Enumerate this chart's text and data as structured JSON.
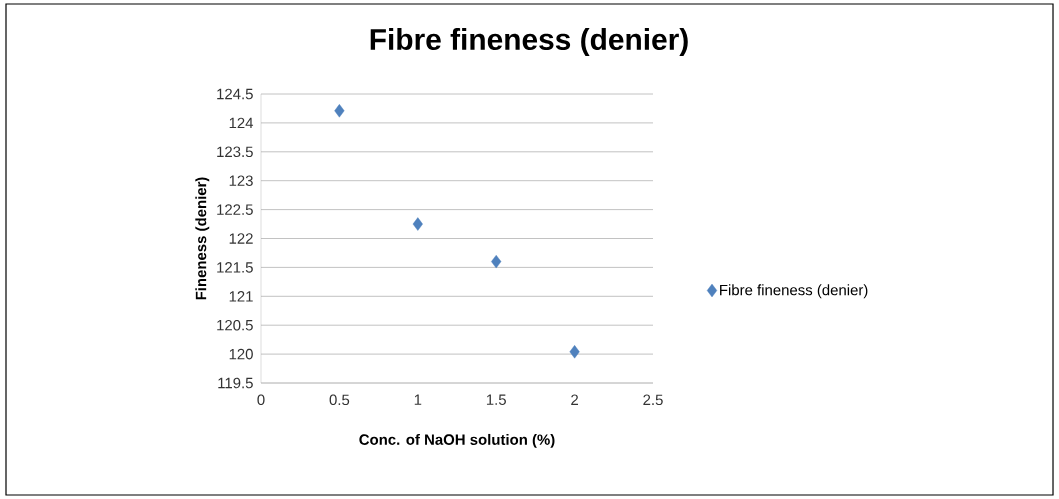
{
  "chart_data": {
    "type": "scatter",
    "title": "Fibre fineness (denier)",
    "xlabel": "Conc. of NaOH solution (%)",
    "ylabel": "Fineness (denier)",
    "x": [
      0.5,
      1,
      1.5,
      2
    ],
    "series": [
      {
        "name": "Fibre fineness (denier)",
        "color": "#4f81bd",
        "values": [
          124.21,
          122.25,
          121.6,
          120.04
        ]
      }
    ],
    "xlim": [
      0,
      2.5
    ],
    "xticks": [
      0,
      0.5,
      1,
      1.5,
      2,
      2.5
    ],
    "ylim": [
      119.5,
      124.5
    ],
    "yticks": [
      119.5,
      120,
      120.5,
      121,
      121.5,
      122,
      122.5,
      123,
      123.5,
      124,
      124.5
    ],
    "grid": "y",
    "legend": "right",
    "marker": "diamond"
  }
}
